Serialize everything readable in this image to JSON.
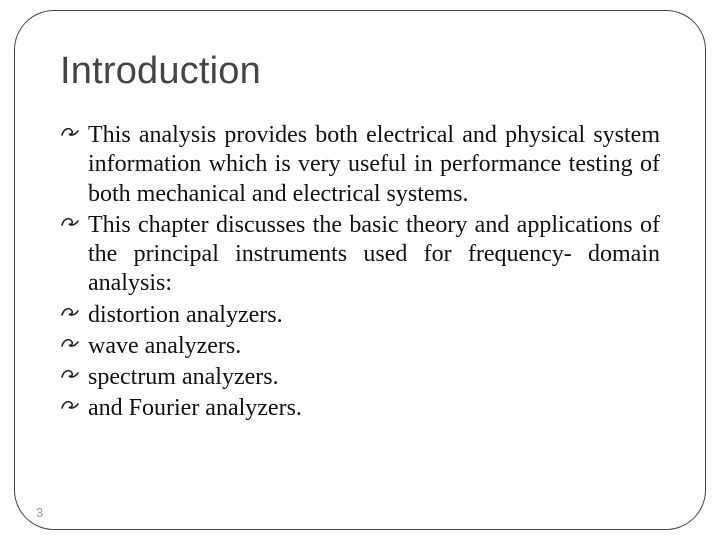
{
  "title": "Introduction",
  "title_fontsize": 38,
  "title_color": "#454545",
  "body_fontsize": 24,
  "body_color": "#111111",
  "bullet_color": "#222222",
  "frame_color": "#444444",
  "frame_radius": 40,
  "background_color": "#ffffff",
  "page_number": "3",
  "page_number_color": "#9a9a9a",
  "items": [
    {
      "text": "This analysis provides both electrical and physical system information which is very useful in performance testing of both mechanical and electrical systems.",
      "justify": true
    },
    {
      "text": "This chapter discusses the basic theory and applications of the principal instruments used for frequency- domain analysis:",
      "justify": true
    },
    {
      "text": "distortion analyzers.",
      "justify": false
    },
    {
      "text": " wave analyzers.",
      "justify": false
    },
    {
      "text": "spectrum analyzers.",
      "justify": false
    },
    {
      "text": " and Fourier analyzers.",
      "justify": false
    }
  ]
}
